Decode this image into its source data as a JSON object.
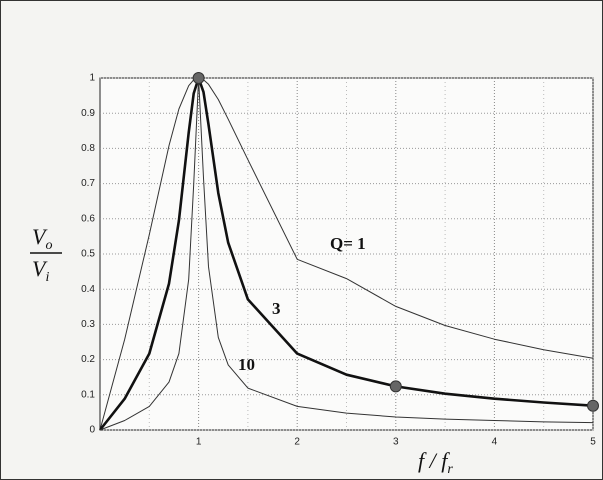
{
  "chart_data": {
    "type": "line",
    "x": [
      0,
      0.25,
      0.5,
      0.7,
      0.8,
      0.9,
      0.95,
      1,
      1.05,
      1.1,
      1.2,
      1.3,
      1.5,
      2,
      2.5,
      3,
      3.5,
      4,
      4.5,
      5
    ],
    "series": [
      {
        "name": "Q= 1",
        "color": "#333333",
        "values": [
          0,
          0.258,
          0.555,
          0.808,
          0.912,
          0.978,
          0.995,
          1,
          0.995,
          0.982,
          0.939,
          0.883,
          0.768,
          0.485,
          0.43,
          0.351,
          0.297,
          0.258,
          0.228,
          0.204
        ]
      },
      {
        "name": "3",
        "color": "#111111",
        "values": [
          0,
          0.089,
          0.217,
          0.416,
          0.595,
          0.845,
          0.956,
          1,
          0.96,
          0.868,
          0.673,
          0.532,
          0.371,
          0.217,
          0.157,
          0.124,
          0.103,
          0.089,
          0.078,
          0.069
        ]
      },
      {
        "name": "10",
        "color": "#333333",
        "values": [
          0,
          0.027,
          0.067,
          0.136,
          0.217,
          0.428,
          0.698,
          1,
          0.716,
          0.464,
          0.263,
          0.185,
          0.119,
          0.067,
          0.048,
          0.037,
          0.031,
          0.027,
          0.023,
          0.021
        ]
      }
    ],
    "xlim": [
      0,
      5
    ],
    "ylim": [
      0,
      1
    ],
    "xticks": [
      1,
      2,
      3,
      4,
      5
    ],
    "xminor": [
      0.5,
      1.5,
      2.5,
      3.5,
      4.5
    ],
    "yticks": [
      0,
      0.1,
      0.2,
      0.3,
      0.4,
      0.5,
      0.6,
      0.7,
      0.8,
      0.9,
      1
    ],
    "grid": true,
    "y_label": {
      "num": {
        "base": "V",
        "sub": "o"
      },
      "den": {
        "base": "V",
        "sub": "i"
      }
    },
    "x_label": {
      "base": "f / f",
      "sub": "r"
    }
  }
}
